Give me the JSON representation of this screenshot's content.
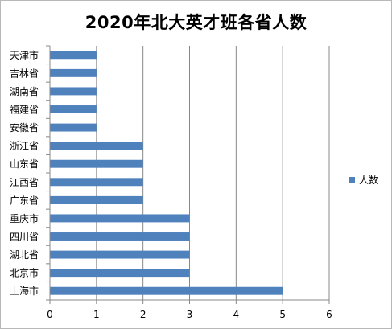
{
  "chart_data": {
    "type": "bar",
    "orientation": "horizontal",
    "title": "2020年北大英才班各省人数",
    "categories": [
      "天津市",
      "吉林省",
      "湖南省",
      "福建省",
      "安徽省",
      "浙江省",
      "山东省",
      "江西省",
      "广东省",
      "重庆市",
      "四川省",
      "湖北省",
      "北京市",
      "上海市"
    ],
    "series": [
      {
        "name": "人数",
        "values": [
          1,
          1,
          1,
          1,
          1,
          2,
          2,
          2,
          2,
          3,
          3,
          3,
          3,
          5
        ]
      }
    ],
    "xlim": [
      0,
      6
    ],
    "x_ticks": [
      "0",
      "1",
      "2",
      "3",
      "4",
      "5",
      "6"
    ],
    "grid": "vertical",
    "legend_position": "right",
    "bar_color": "#4f81bd"
  }
}
